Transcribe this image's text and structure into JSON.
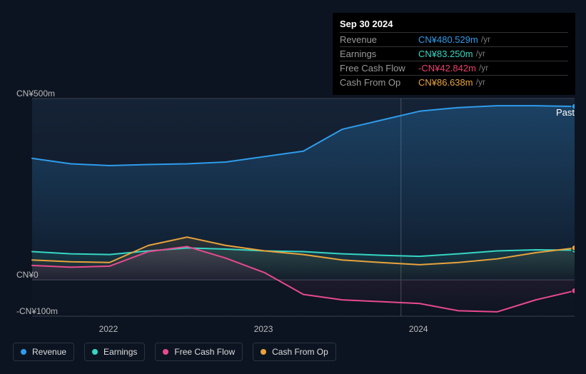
{
  "tooltip": {
    "date": "Sep 30 2024",
    "rows": [
      {
        "label": "Revenue",
        "value": "CN¥480.529m",
        "suffix": "/yr",
        "color": "#2f9ceb"
      },
      {
        "label": "Earnings",
        "value": "CN¥83.250m",
        "suffix": "/yr",
        "color": "#36d6c3"
      },
      {
        "label": "Free Cash Flow",
        "value": "-CN¥42.842m",
        "suffix": "/yr",
        "color": "#eb3d6e"
      },
      {
        "label": "Cash From Op",
        "value": "CN¥86.638m",
        "suffix": "/yr",
        "color": "#e8a33c"
      }
    ]
  },
  "chart": {
    "past_label": "Past",
    "background": "#0d1421",
    "plot_gradient_top": "#152336",
    "plot_gradient_bottom": "#0d1421",
    "grid_color": "#3a4250",
    "vline_x": 0.68,
    "y_axis": {
      "min": -100,
      "max": 500,
      "labels": [
        {
          "text": "CN¥500m",
          "value": 500
        },
        {
          "text": "CN¥0",
          "value": 0
        },
        {
          "text": "-CN¥100m",
          "value": -100
        }
      ]
    },
    "x_axis": {
      "min": 2021.5,
      "max": 2025.0,
      "labels": [
        {
          "text": "2022",
          "value": 2022
        },
        {
          "text": "2023",
          "value": 2023
        },
        {
          "text": "2024",
          "value": 2024
        }
      ]
    },
    "series": [
      {
        "name": "Revenue",
        "color": "#2f9ceb",
        "fill_top": "rgba(47,156,235,0.25)",
        "fill_bottom": "rgba(47,156,235,0.02)",
        "width": 2,
        "x": [
          2021.5,
          2021.75,
          2022,
          2022.25,
          2022.5,
          2022.75,
          2023,
          2023.25,
          2023.5,
          2023.75,
          2024,
          2024.25,
          2024.5,
          2024.75,
          2025
        ],
        "y": [
          335,
          320,
          315,
          318,
          320,
          325,
          340,
          355,
          415,
          440,
          465,
          475,
          480,
          480,
          478
        ]
      },
      {
        "name": "Earnings",
        "color": "#36d6c3",
        "fill_top": "rgba(54,214,195,0.15)",
        "fill_bottom": "rgba(54,214,195,0.01)",
        "width": 2,
        "x": [
          2021.5,
          2021.75,
          2022,
          2022.25,
          2022.5,
          2022.75,
          2023,
          2023.25,
          2023.5,
          2023.75,
          2024,
          2024.25,
          2024.5,
          2024.75,
          2025
        ],
        "y": [
          78,
          72,
          70,
          80,
          88,
          85,
          80,
          78,
          72,
          68,
          65,
          72,
          80,
          83,
          82
        ]
      },
      {
        "name": "Cash From Op",
        "color": "#e8a33c",
        "fill_top": "rgba(232,163,60,0.12)",
        "fill_bottom": "rgba(232,163,60,0.01)",
        "width": 2,
        "x": [
          2021.5,
          2021.75,
          2022,
          2022.25,
          2022.5,
          2022.75,
          2023,
          2023.25,
          2023.5,
          2023.75,
          2024,
          2024.25,
          2024.5,
          2024.75,
          2025
        ],
        "y": [
          55,
          50,
          48,
          95,
          118,
          95,
          80,
          70,
          55,
          48,
          42,
          48,
          58,
          75,
          88
        ]
      },
      {
        "name": "Free Cash Flow",
        "color": "#e84a8f",
        "fill_top": "rgba(232,74,143,0.12)",
        "fill_bottom": "rgba(232,74,143,0.01)",
        "width": 2,
        "x": [
          2021.5,
          2021.75,
          2022,
          2022.25,
          2022.5,
          2022.75,
          2023,
          2023.25,
          2023.5,
          2023.75,
          2024,
          2024.25,
          2024.5,
          2024.75,
          2025
        ],
        "y": [
          40,
          35,
          38,
          78,
          92,
          60,
          20,
          -40,
          -55,
          -60,
          -65,
          -85,
          -88,
          -55,
          -30
        ]
      }
    ]
  },
  "legend": [
    {
      "label": "Revenue",
      "color": "#2f9ceb"
    },
    {
      "label": "Earnings",
      "color": "#36d6c3"
    },
    {
      "label": "Free Cash Flow",
      "color": "#e84a8f"
    },
    {
      "label": "Cash From Op",
      "color": "#e8a33c"
    }
  ]
}
